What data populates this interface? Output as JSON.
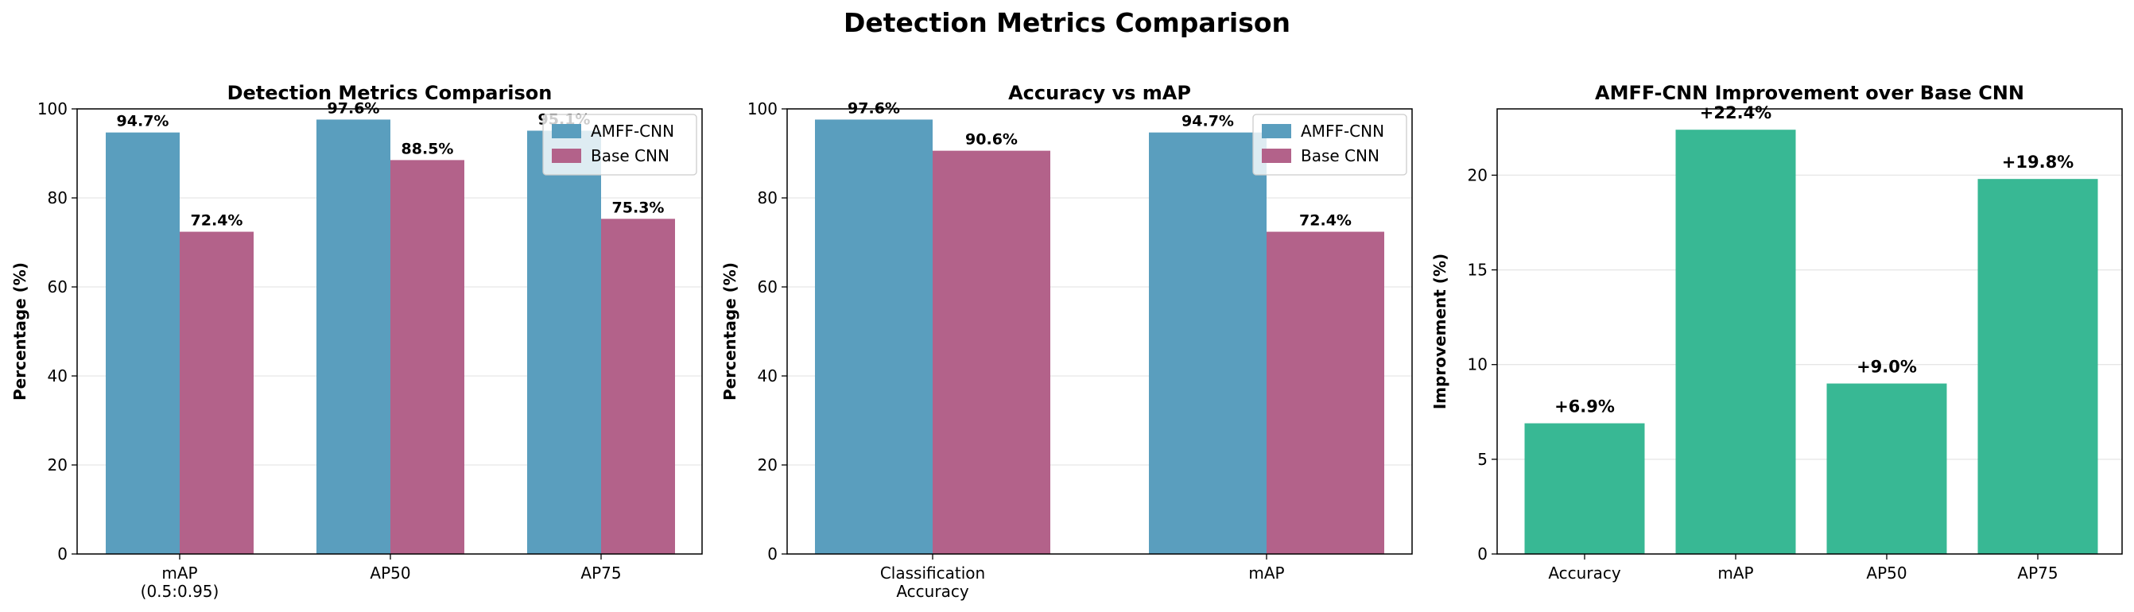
{
  "figure": {
    "suptitle": "Detection Metrics Comparison"
  },
  "colors": {
    "amff": "#5a9ebe",
    "base": "#b3628a",
    "improvement": "#38b894",
    "grid": "#e6e6e6",
    "axis": "#000000"
  },
  "chart_data": [
    {
      "type": "bar",
      "title": "Detection Metrics Comparison",
      "xlabel": "",
      "ylabel": "Percentage (%)",
      "categories": [
        [
          "mAP",
          "(0.5:0.95)"
        ],
        [
          "AP50"
        ],
        [
          "AP75"
        ]
      ],
      "series": [
        {
          "name": "AMFF-CNN",
          "values": [
            94.7,
            97.6,
            95.1
          ],
          "labels": [
            "94.7%",
            "97.6%",
            "95.1%"
          ],
          "color_key": "amff"
        },
        {
          "name": "Base CNN",
          "values": [
            72.4,
            88.5,
            75.3
          ],
          "labels": [
            "72.4%",
            "88.5%",
            "75.3%"
          ],
          "color_key": "base"
        }
      ],
      "ylim": [
        0,
        100
      ],
      "yticks": [
        0,
        20,
        40,
        60,
        80,
        100
      ],
      "grid": "y",
      "legend": "top-right"
    },
    {
      "type": "bar",
      "title": "Accuracy vs mAP",
      "xlabel": "",
      "ylabel": "Percentage (%)",
      "categories": [
        [
          "Classification",
          "Accuracy"
        ],
        [
          "mAP"
        ]
      ],
      "series": [
        {
          "name": "AMFF-CNN",
          "values": [
            97.6,
            94.7
          ],
          "labels": [
            "97.6%",
            "94.7%"
          ],
          "color_key": "amff"
        },
        {
          "name": "Base CNN",
          "values": [
            90.6,
            72.4
          ],
          "labels": [
            "90.6%",
            "72.4%"
          ],
          "color_key": "base"
        }
      ],
      "ylim": [
        0,
        100
      ],
      "yticks": [
        0,
        20,
        40,
        60,
        80,
        100
      ],
      "grid": "y",
      "legend": "top-right"
    },
    {
      "type": "bar",
      "title": "AMFF-CNN Improvement over Base CNN",
      "xlabel": "",
      "ylabel": "Improvement (%)",
      "categories": [
        [
          "Accuracy"
        ],
        [
          "mAP"
        ],
        [
          "AP50"
        ],
        [
          "AP75"
        ]
      ],
      "series": [
        {
          "values": [
            6.9,
            22.4,
            9.0,
            19.8
          ],
          "labels": [
            "+6.9%",
            "+22.4%",
            "+9.0%",
            "+19.8%"
          ],
          "color_key": "improvement"
        }
      ],
      "ylim": [
        0,
        23.5
      ],
      "yticks": [
        0,
        5,
        10,
        15,
        20
      ],
      "grid": "y",
      "legend": "none"
    }
  ]
}
